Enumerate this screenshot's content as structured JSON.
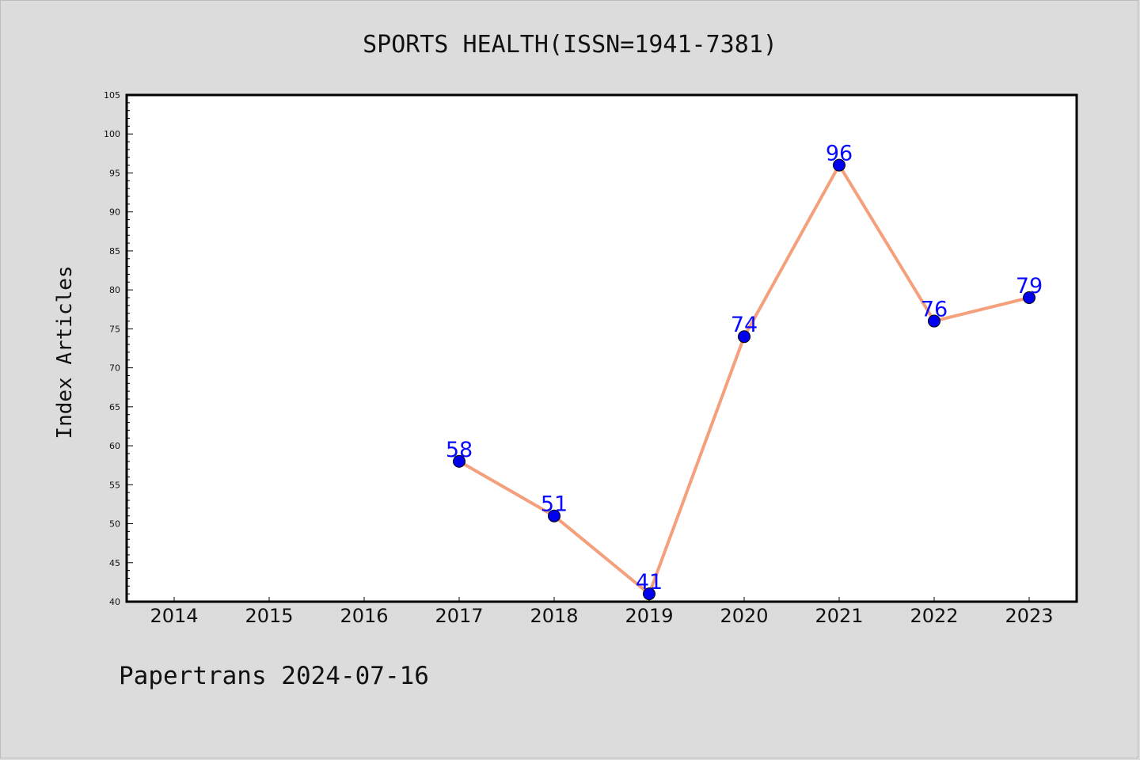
{
  "chart_data": {
    "type": "line",
    "title": "SPORTS HEALTH(ISSN=1941-7381)",
    "ylabel": "Index Articles",
    "xlabel": "",
    "categories": [
      "2014",
      "2015",
      "2016",
      "2017",
      "2018",
      "2019",
      "2020",
      "2021",
      "2022",
      "2023"
    ],
    "series": [
      {
        "x": [
          "2017",
          "2018",
          "2019",
          "2020",
          "2021",
          "2022",
          "2023"
        ],
        "values": [
          58,
          51,
          41,
          74,
          96,
          76,
          79
        ]
      }
    ],
    "ylim": [
      40,
      105
    ],
    "y_ticks": [
      40,
      45,
      50,
      55,
      60,
      65,
      70,
      75,
      80,
      85,
      90,
      95,
      100,
      105
    ],
    "grid": false,
    "legend": "none",
    "colors": {
      "line": "#f4a07c",
      "marker": "#0000ee",
      "label": "#0a0aff",
      "background": "#dcdcdc",
      "plot": "#ffffff"
    }
  },
  "footer": "Papertrans 2024-07-16"
}
